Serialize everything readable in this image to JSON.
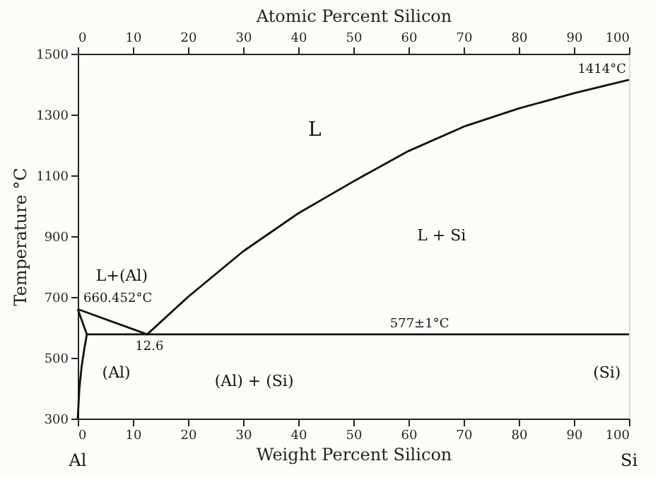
{
  "chart_data": {
    "type": "line",
    "xlabel": "Weight Percent Silicon",
    "x2label": "Atomic Percent Silicon",
    "ylabel": "Temperature °C",
    "series": [
      {
        "color": "#111111",
        "x": [
          0,
          12.6,
          20,
          30,
          40,
          50,
          60,
          70,
          80,
          90,
          100
        ],
        "values": [
          660,
          577,
          700,
          850,
          975,
          1080,
          1180,
          1260,
          1320,
          1370,
          1414
        ]
      },
      {
        "color": "#111111",
        "x": [
          0,
          1.65
        ],
        "values": [
          660,
          577
        ]
      },
      {
        "color": "#111111",
        "x": [
          1.65,
          100
        ],
        "values": [
          577,
          577
        ]
      },
      {
        "color": "#111111",
        "x": [
          1.65,
          1.2,
          0.7,
          0.3,
          0
        ],
        "values": [
          577,
          530,
          470,
          400,
          300
        ]
      }
    ],
    "xlim": [
      0,
      100
    ],
    "xticks": [
      0,
      10,
      20,
      30,
      40,
      50,
      60,
      70,
      80,
      90,
      100
    ],
    "x2lim": [
      0,
      100
    ],
    "x2ticks": [
      0,
      10,
      20,
      30,
      40,
      50,
      60,
      70,
      80,
      90,
      100
    ],
    "ylim": [
      300,
      1500
    ],
    "yticks": [
      300,
      500,
      700,
      900,
      1100,
      1300,
      1500
    ],
    "grid": false,
    "marker": "none",
    "line_style": "solid",
    "annotations": [
      "L",
      "L + Si",
      "L+(Al)",
      "(Al) + (Si)",
      "(Al)",
      "(Si)",
      {
        "text": "660.452°C",
        "x": 0,
        "y": 660
      },
      "12.6",
      {
        "text": "577±1°C",
        "x": 62,
        "y": 577
      },
      {
        "text": "1414°C",
        "x": 100,
        "y": 1414
      },
      "Al",
      "Si"
    ]
  }
}
